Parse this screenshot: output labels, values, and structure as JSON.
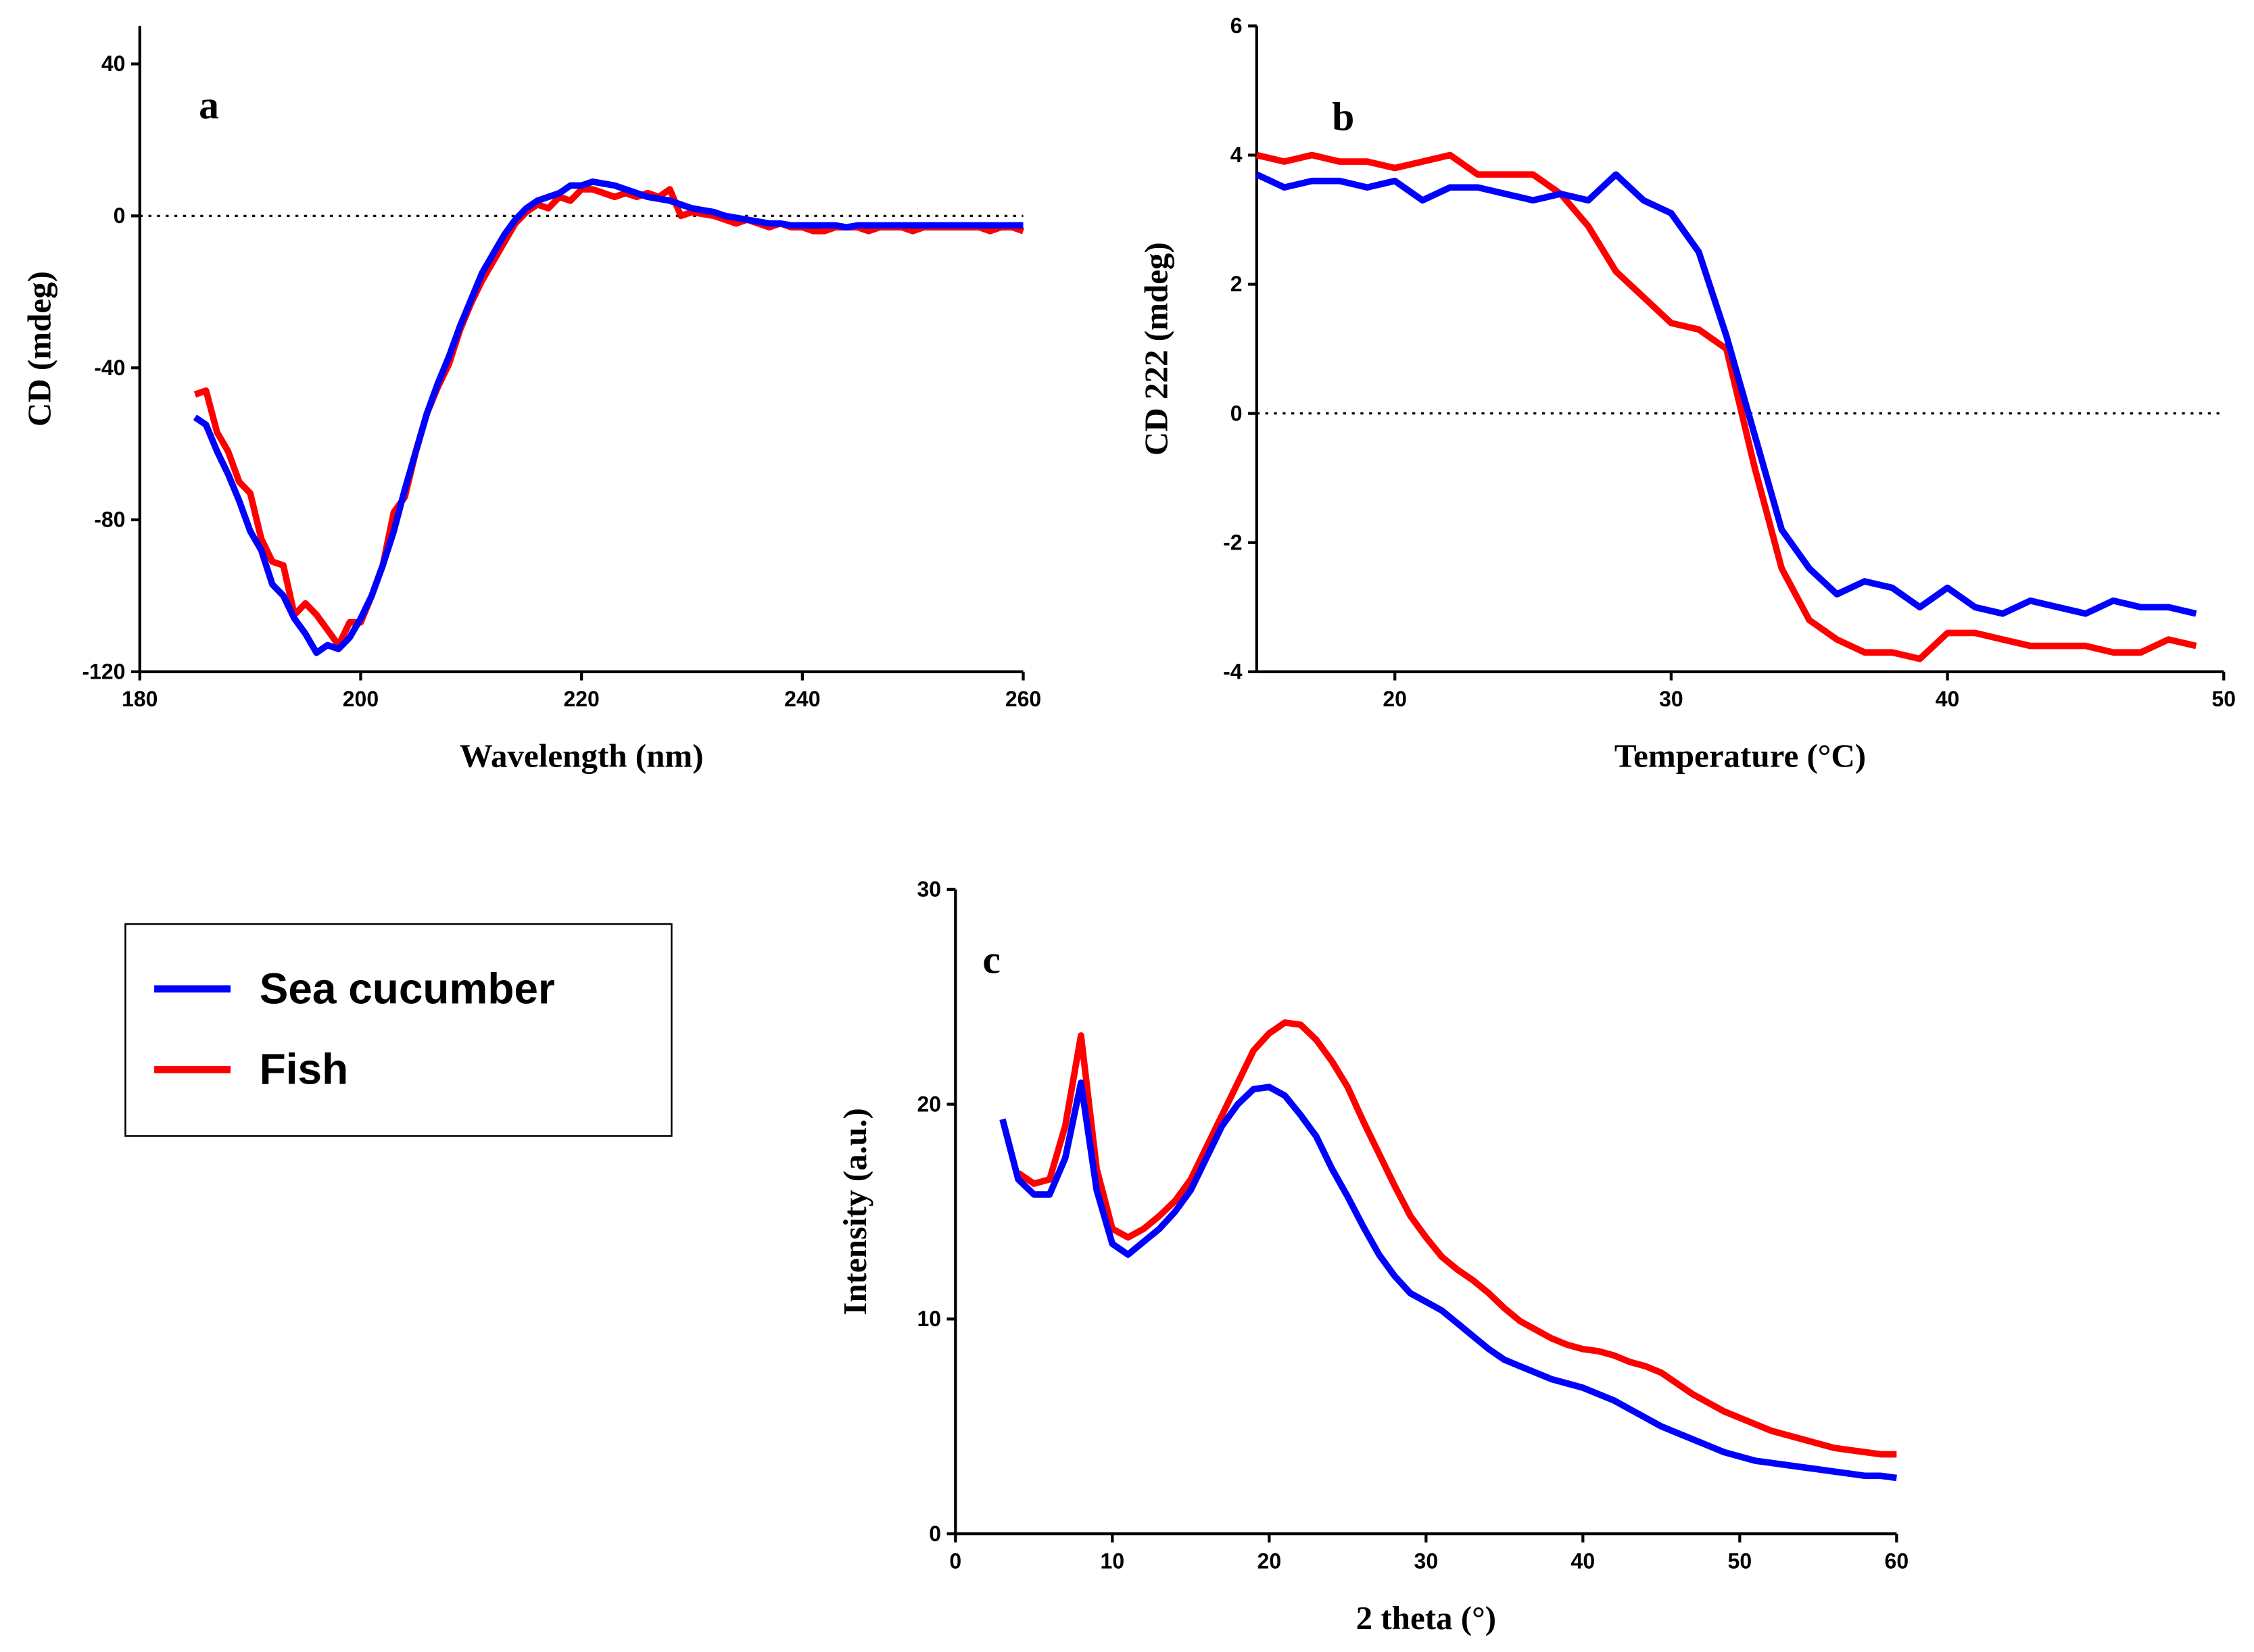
{
  "legend": [
    {
      "name": "Sea cucumber",
      "color": "#0000ff"
    },
    {
      "name": "Fish",
      "color": "#ff0000"
    }
  ],
  "chart_data": [
    {
      "type": "line",
      "label": "a",
      "xlabel": "Wavelength (nm)",
      "ylabel": "CD (mdeg)",
      "xlim": [
        180,
        260
      ],
      "xticks": [
        180,
        200,
        220,
        240,
        260
      ],
      "ylim": [
        -120,
        50
      ],
      "yticks": [
        -120,
        -80,
        -40,
        0,
        40
      ],
      "zero_line": true,
      "x": [
        185,
        186,
        187,
        188,
        189,
        190,
        191,
        192,
        193,
        194,
        195,
        196,
        197,
        198,
        199,
        200,
        201,
        202,
        203,
        204,
        205,
        206,
        207,
        208,
        209,
        210,
        211,
        212,
        213,
        214,
        215,
        216,
        217,
        218,
        219,
        220,
        221,
        222,
        223,
        224,
        225,
        226,
        227,
        228,
        229,
        230,
        231,
        232,
        233,
        234,
        235,
        236,
        237,
        238,
        239,
        240,
        241,
        242,
        243,
        244,
        245,
        246,
        247,
        248,
        249,
        250,
        251,
        252,
        253,
        254,
        255,
        256,
        257,
        258,
        259,
        260
      ],
      "series": [
        {
          "color": "#ff0000",
          "values": [
            -47,
            -46,
            -57,
            -62,
            -70,
            -73,
            -85,
            -91,
            -92,
            -105,
            -102,
            -105,
            -109,
            -113,
            -107,
            -107,
            -100,
            -92,
            -78,
            -74,
            -62,
            -52,
            -45,
            -39,
            -30,
            -23,
            -17,
            -12,
            -7,
            -2,
            1,
            3,
            2,
            5,
            4,
            7,
            7,
            6,
            5,
            6,
            5,
            6,
            5,
            7,
            0,
            1,
            0.5,
            0,
            -1,
            -2,
            -1,
            -2,
            -3,
            -2,
            -3,
            -3,
            -4,
            -4,
            -3,
            -3,
            -3,
            -4,
            -3,
            -3,
            -3,
            -4,
            -3,
            -3,
            -3,
            -3,
            -3,
            -3,
            -4,
            -3,
            -3,
            -4
          ]
        },
        {
          "color": "#0000ff",
          "values": [
            -53,
            -55,
            -62,
            -68,
            -75,
            -83,
            -88,
            -97,
            -100,
            -106,
            -110,
            -115,
            -113,
            -114,
            -111,
            -106,
            -100,
            -92,
            -83,
            -72,
            -62,
            -52,
            -44,
            -37,
            -29,
            -22,
            -15,
            -10,
            -5,
            -1,
            2,
            4,
            5,
            6,
            8,
            8,
            9,
            8.5,
            8,
            7,
            6,
            5,
            4.5,
            4,
            3,
            2,
            1.5,
            1,
            0,
            -0.5,
            -1,
            -1.5,
            -2,
            -2,
            -2.5,
            -2.5,
            -2.5,
            -2.5,
            -2.5,
            -3,
            -2.5,
            -2.5,
            -2.5,
            -2.5,
            -2.5,
            -2.5,
            -2.5,
            -2.5,
            -2.5,
            -2.5,
            -2.5,
            -2.5,
            -2.5,
            -2.5,
            -2.5,
            -2.5
          ]
        }
      ]
    },
    {
      "type": "line",
      "label": "b",
      "xlabel": "Temperature (°C)",
      "ylabel": "CD 222 (mdeg)",
      "xlim": [
        15,
        50
      ],
      "xticks": [
        20,
        30,
        40,
        50
      ],
      "ylim": [
        -4,
        6
      ],
      "yticks": [
        -4,
        -2,
        0,
        2,
        4,
        6
      ],
      "zero_line": true,
      "x": [
        15,
        16,
        17,
        18,
        19,
        20,
        21,
        22,
        23,
        24,
        25,
        26,
        27,
        28,
        29,
        30,
        31,
        32,
        33,
        34,
        35,
        36,
        37,
        38,
        39,
        40,
        41,
        42,
        43,
        44,
        45,
        46,
        47,
        48,
        49
      ],
      "series": [
        {
          "color": "#ff0000",
          "values": [
            4.0,
            3.9,
            4.0,
            3.9,
            3.9,
            3.8,
            3.9,
            4.0,
            3.7,
            3.7,
            3.7,
            3.4,
            2.9,
            2.2,
            1.8,
            1.4,
            1.3,
            1.0,
            -0.8,
            -2.4,
            -3.2,
            -3.5,
            -3.7,
            -3.7,
            -3.8,
            -3.4,
            -3.4,
            -3.5,
            -3.6,
            -3.6,
            -3.6,
            -3.7,
            -3.7,
            -3.5,
            -3.6
          ]
        },
        {
          "color": "#0000ff",
          "values": [
            3.7,
            3.5,
            3.6,
            3.6,
            3.5,
            3.6,
            3.3,
            3.5,
            3.5,
            3.4,
            3.3,
            3.4,
            3.3,
            3.7,
            3.3,
            3.1,
            2.5,
            1.2,
            -0.3,
            -1.8,
            -2.4,
            -2.8,
            -2.6,
            -2.7,
            -3.0,
            -2.7,
            -3.0,
            -3.1,
            -2.9,
            -3.0,
            -3.1,
            -2.9,
            -3.0,
            -3.0,
            -3.1
          ]
        }
      ]
    },
    {
      "type": "line",
      "label": "c",
      "xlabel": "2 theta (°)",
      "ylabel": "Intensity (a.u.)",
      "xlim": [
        0,
        60
      ],
      "xticks": [
        0,
        10,
        20,
        30,
        40,
        50,
        60
      ],
      "ylim": [
        0,
        30
      ],
      "yticks": [
        0,
        10,
        20,
        30
      ],
      "zero_line": false,
      "x": [
        3,
        4,
        5,
        6,
        7,
        8,
        9,
        10,
        11,
        12,
        13,
        14,
        15,
        16,
        17,
        18,
        19,
        20,
        21,
        22,
        23,
        24,
        25,
        26,
        27,
        28,
        29,
        30,
        31,
        32,
        33,
        34,
        35,
        36,
        37,
        38,
        39,
        40,
        41,
        42,
        43,
        44,
        45,
        46,
        47,
        48,
        49,
        50,
        51,
        52,
        53,
        54,
        55,
        56,
        57,
        58,
        59,
        60
      ],
      "series": [
        {
          "color": "#ff0000",
          "values": [
            null,
            16.8,
            16.3,
            16.5,
            19,
            23.2,
            17,
            14.2,
            13.8,
            14.2,
            14.8,
            15.5,
            16.5,
            18,
            19.5,
            21,
            22.5,
            23.3,
            23.8,
            23.7,
            23,
            22,
            20.8,
            19.2,
            17.7,
            16.2,
            14.8,
            13.8,
            12.9,
            12.3,
            11.8,
            11.2,
            10.5,
            9.9,
            9.5,
            9.1,
            8.8,
            8.6,
            8.5,
            8.3,
            8.0,
            7.8,
            7.5,
            7.0,
            6.5,
            6.1,
            5.7,
            5.4,
            5.1,
            4.8,
            4.6,
            4.4,
            4.2,
            4.0,
            3.9,
            3.8,
            3.7,
            3.7
          ]
        },
        {
          "color": "#0000ff",
          "values": [
            19.3,
            16.5,
            15.8,
            15.8,
            17.5,
            21,
            16,
            13.5,
            13,
            13.6,
            14.2,
            15,
            16,
            17.5,
            19,
            20,
            20.7,
            20.8,
            20.4,
            19.5,
            18.5,
            17,
            15.7,
            14.3,
            13,
            12,
            11.2,
            10.8,
            10.4,
            9.8,
            9.2,
            8.6,
            8.1,
            7.8,
            7.5,
            7.2,
            7.0,
            6.8,
            6.5,
            6.2,
            5.8,
            5.4,
            5.0,
            4.7,
            4.4,
            4.1,
            3.8,
            3.6,
            3.4,
            3.3,
            3.2,
            3.1,
            3.0,
            2.9,
            2.8,
            2.7,
            2.7,
            2.6
          ]
        }
      ]
    }
  ]
}
